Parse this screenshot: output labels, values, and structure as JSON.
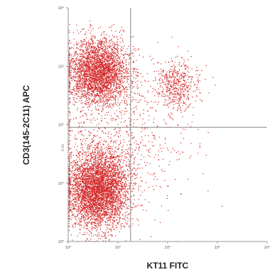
{
  "chart_data": {
    "type": "scatter",
    "title": "",
    "xlabel": "KT11 FITC",
    "ylabel": "CD3(145-2C11) APC",
    "x_scale": "log",
    "y_scale": "log",
    "xlim": [
      1,
      10000
    ],
    "ylim": [
      1,
      10000
    ],
    "x_ticks": [
      "10⁰",
      "10¹",
      "10²",
      "10³",
      "10⁴"
    ],
    "y_ticks": [
      "10⁰",
      "10¹",
      "10²",
      "10³",
      "10⁴"
    ],
    "y_gate_label": "FL4H",
    "quadrant_gate": {
      "x": 18,
      "y": 90
    },
    "grid": false,
    "point_color": "#d42a2a",
    "populations": [
      {
        "name": "",
        "x_center": 4,
        "y_center": 800,
        "x_spread_decades": 0.3,
        "y_spread_decades": 0.28,
        "relative_count": 0.36
      },
      {
        "name": "",
        "x_center": 4,
        "y_center": 8,
        "x_spread_decades": 0.3,
        "y_spread_decades": 0.33,
        "relative_count": 0.5
      },
      {
        "name": "",
        "x_center": 150,
        "y_center": 500,
        "x_spread_decades": 0.22,
        "y_spread_decades": 0.2,
        "relative_count": 0.06
      },
      {
        "name": "",
        "x_center": 10,
        "y_center": 60,
        "x_spread_decades": 0.75,
        "y_spread_decades": 0.6,
        "relative_count": 0.08
      }
    ]
  }
}
